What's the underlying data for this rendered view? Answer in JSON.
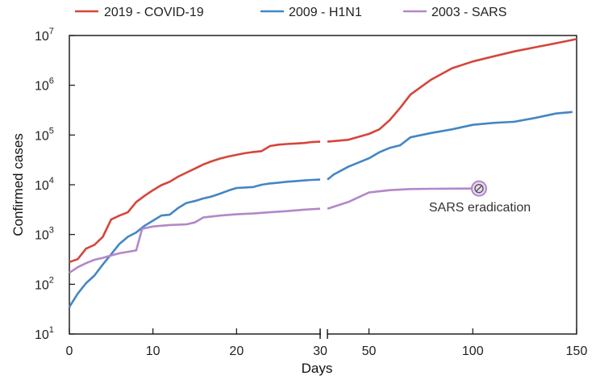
{
  "chart_data": {
    "type": "line",
    "title": "",
    "xlabel": "Days",
    "ylabel": "Confirmed cases",
    "yscale": "log",
    "ylim": [
      10,
      10000000
    ],
    "y_ticks": [
      {
        "value": 10,
        "base": "10",
        "exp": "1"
      },
      {
        "value": 100,
        "base": "10",
        "exp": "2"
      },
      {
        "value": 1000,
        "base": "10",
        "exp": "3"
      },
      {
        "value": 10000,
        "base": "10",
        "exp": "4"
      },
      {
        "value": 100000,
        "base": "10",
        "exp": "5"
      },
      {
        "value": 1000000,
        "base": "10",
        "exp": "6"
      },
      {
        "value": 10000000,
        "base": "10",
        "exp": "7"
      }
    ],
    "x_segments": [
      {
        "range": [
          0,
          30
        ],
        "ticks": [
          0,
          10,
          20,
          30
        ]
      },
      {
        "range": [
          30,
          150
        ],
        "ticks": [
          50,
          100,
          150
        ]
      }
    ],
    "series": [
      {
        "name": "2019 - COVID-19",
        "color": "#d6453a",
        "points": [
          [
            0,
            280
          ],
          [
            1,
            320
          ],
          [
            2,
            520
          ],
          [
            3,
            620
          ],
          [
            4,
            900
          ],
          [
            5,
            2000
          ],
          [
            6,
            2400
          ],
          [
            7,
            2800
          ],
          [
            8,
            4500
          ],
          [
            9,
            6000
          ],
          [
            10,
            7800
          ],
          [
            11,
            9800
          ],
          [
            12,
            11500
          ],
          [
            13,
            14500
          ],
          [
            14,
            17500
          ],
          [
            15,
            21000
          ],
          [
            16,
            25500
          ],
          [
            17,
            29500
          ],
          [
            18,
            33500
          ],
          [
            19,
            37000
          ],
          [
            20,
            40000
          ],
          [
            21,
            43000
          ],
          [
            22,
            45500
          ],
          [
            23,
            47500
          ],
          [
            24,
            60000
          ],
          [
            25,
            64000
          ],
          [
            26,
            66000
          ],
          [
            27,
            67500
          ],
          [
            28,
            69000
          ],
          [
            29,
            72000
          ],
          [
            30,
            73500
          ],
          [
            30,
            73500
          ],
          [
            40,
            80000
          ],
          [
            50,
            105000
          ],
          [
            55,
            130000
          ],
          [
            60,
            200000
          ],
          [
            65,
            350000
          ],
          [
            70,
            650000
          ],
          [
            80,
            1300000
          ],
          [
            90,
            2200000
          ],
          [
            100,
            3000000
          ],
          [
            110,
            3800000
          ],
          [
            120,
            4800000
          ],
          [
            130,
            5800000
          ],
          [
            140,
            7000000
          ],
          [
            150,
            8500000
          ]
        ]
      },
      {
        "name": "2009 - H1N1",
        "color": "#4486c4",
        "points": [
          [
            0,
            35
          ],
          [
            1,
            65
          ],
          [
            2,
            105
          ],
          [
            3,
            150
          ],
          [
            4,
            250
          ],
          [
            5,
            400
          ],
          [
            6,
            650
          ],
          [
            7,
            900
          ],
          [
            8,
            1100
          ],
          [
            9,
            1500
          ],
          [
            10,
            1900
          ],
          [
            11,
            2400
          ],
          [
            12,
            2500
          ],
          [
            13,
            3400
          ],
          [
            14,
            4300
          ],
          [
            15,
            4700
          ],
          [
            16,
            5300
          ],
          [
            17,
            5800
          ],
          [
            18,
            6600
          ],
          [
            19,
            7600
          ],
          [
            20,
            8600
          ],
          [
            21,
            8800
          ],
          [
            22,
            9000
          ],
          [
            23,
            10000
          ],
          [
            24,
            10600
          ],
          [
            25,
            11000
          ],
          [
            26,
            11500
          ],
          [
            27,
            11800
          ],
          [
            28,
            12200
          ],
          [
            29,
            12500
          ],
          [
            30,
            12700
          ],
          [
            30,
            12700
          ],
          [
            33,
            16000
          ],
          [
            40,
            23000
          ],
          [
            50,
            34000
          ],
          [
            55,
            45000
          ],
          [
            60,
            55000
          ],
          [
            65,
            62000
          ],
          [
            70,
            90000
          ],
          [
            80,
            110000
          ],
          [
            90,
            130000
          ],
          [
            100,
            160000
          ],
          [
            110,
            175000
          ],
          [
            120,
            185000
          ],
          [
            130,
            220000
          ],
          [
            140,
            270000
          ],
          [
            148,
            290000
          ]
        ]
      },
      {
        "name": "2003 - SARS",
        "color": "#b387c9",
        "points": [
          [
            0,
            170
          ],
          [
            1,
            220
          ],
          [
            2,
            265
          ],
          [
            3,
            310
          ],
          [
            4,
            340
          ],
          [
            5,
            380
          ],
          [
            6,
            420
          ],
          [
            7,
            450
          ],
          [
            8,
            480
          ],
          [
            8.7,
            1300
          ],
          [
            10,
            1450
          ],
          [
            12,
            1550
          ],
          [
            14,
            1600
          ],
          [
            15,
            1750
          ],
          [
            16,
            2200
          ],
          [
            18,
            2400
          ],
          [
            20,
            2550
          ],
          [
            22,
            2650
          ],
          [
            24,
            2800
          ],
          [
            26,
            2950
          ],
          [
            28,
            3150
          ],
          [
            30,
            3300
          ],
          [
            30,
            3300
          ],
          [
            40,
            4500
          ],
          [
            50,
            7000
          ],
          [
            60,
            7800
          ],
          [
            70,
            8200
          ],
          [
            80,
            8300
          ],
          [
            90,
            8350
          ],
          [
            100,
            8400
          ],
          [
            103,
            8400
          ]
        ]
      }
    ],
    "annotations": [
      {
        "text": "SARS eradication",
        "x": 103,
        "y": 8400,
        "marker": "circle-slash",
        "color": "#b387c9"
      }
    ],
    "legend_position": "top"
  }
}
